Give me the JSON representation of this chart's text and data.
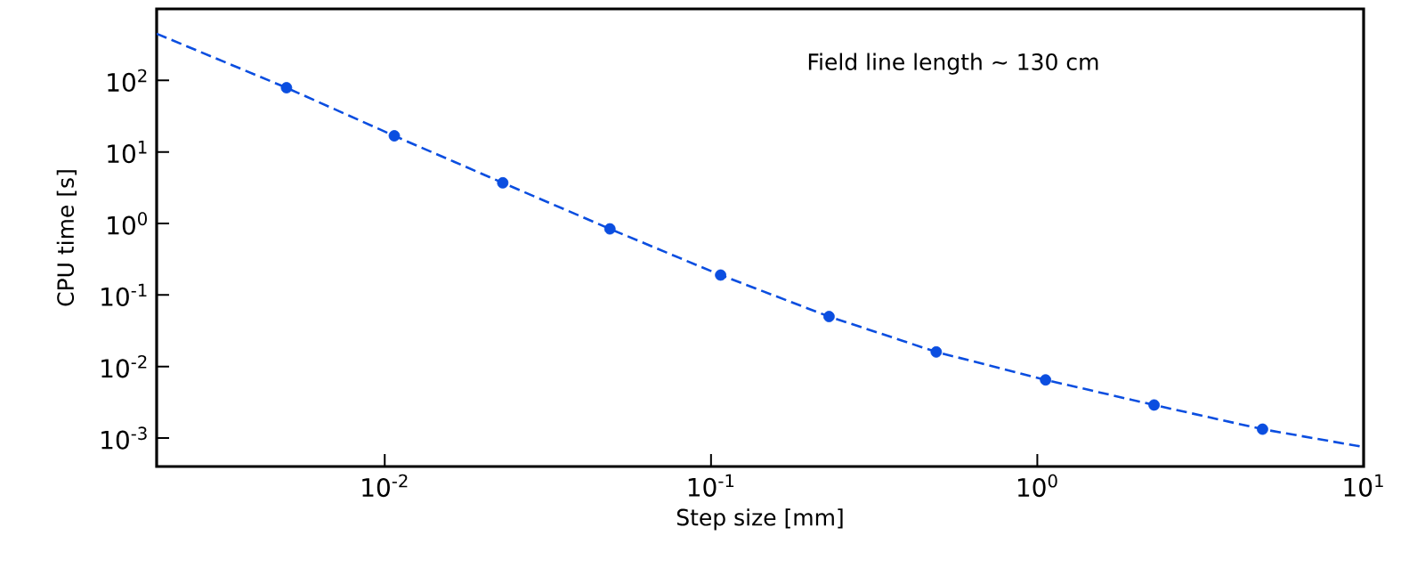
{
  "chart_data": {
    "type": "scatter",
    "xlabel": "Step size [mm]",
    "ylabel": "CPU time [s]",
    "annotations": [
      "Field line length ~ 130 cm"
    ],
    "log": "xy",
    "xlim": [
      0.002,
      10
    ],
    "ylim": [
      0.0004,
      1000
    ],
    "xticks": [
      {
        "value": 0.01,
        "label": "10$^{-2}$"
      },
      {
        "value": 0.1,
        "label": "10$^{-1}$"
      },
      {
        "value": 1,
        "label": "10$^{0}$"
      },
      {
        "value": 10,
        "label": "10$^{1}$"
      }
    ],
    "yticks": [
      {
        "value": 0.001,
        "label": "10$^{-3}$"
      },
      {
        "value": 0.01,
        "label": "10$^{-2}$"
      },
      {
        "value": 0.1,
        "label": "10$^{-1}$"
      },
      {
        "value": 1,
        "label": "10$^{0}$"
      },
      {
        "value": 10,
        "label": "10$^{1}$"
      },
      {
        "value": 100,
        "label": "10$^{2}$"
      }
    ],
    "series": [
      {
        "color": "#0b4ee0",
        "marker": "circle",
        "x": [
          0.005,
          0.0107,
          0.023,
          0.049,
          0.107,
          0.23,
          0.49,
          1.06,
          2.28,
          4.9
        ],
        "values": [
          79,
          16.8,
          3.7,
          0.84,
          0.19,
          0.05,
          0.016,
          0.0065,
          0.0029,
          0.00133
        ]
      },
      {
        "type": "line",
        "color": "#0b4ee0",
        "line_style": "dashed",
        "marker": "none",
        "x": [
          0.002,
          0.005,
          0.0107,
          0.023,
          0.049,
          0.107,
          0.23,
          0.49,
          1.06,
          2.28,
          4.9,
          10
        ],
        "values": [
          450,
          79,
          16.8,
          3.7,
          0.84,
          0.19,
          0.05,
          0.016,
          0.0065,
          0.0029,
          0.00133,
          0.00075
        ]
      }
    ]
  }
}
